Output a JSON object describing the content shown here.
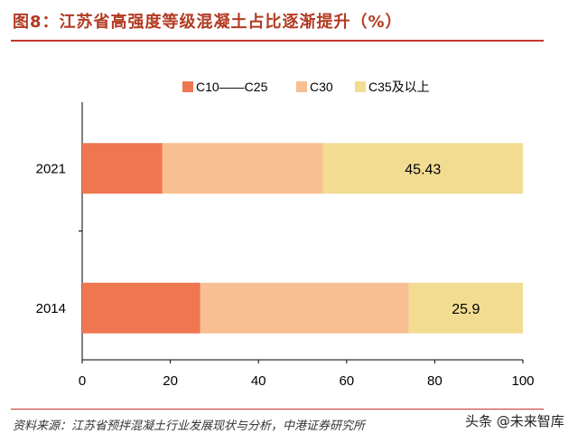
{
  "title": "图8：江苏省高强度等级混凝土占比逐渐提升（%）",
  "source": "资料来源：江苏省预拌混凝土行业发展现状与分析，中港证券研究所",
  "watermark": "头条 @未来智库",
  "colors": {
    "accent": "#c0392b",
    "series": [
      "#ee7650",
      "#f8bf92",
      "#f2dc92"
    ]
  },
  "chart_data": {
    "type": "bar",
    "orientation": "horizontal",
    "stacked": true,
    "categories": [
      "2021",
      "2014"
    ],
    "series": [
      {
        "name": "C10——C25",
        "values": [
          18.2,
          26.8
        ]
      },
      {
        "name": "C30",
        "values": [
          36.4,
          47.3
        ]
      },
      {
        "name": "C35及以上",
        "values": [
          45.43,
          25.9
        ]
      }
    ],
    "data_labels": [
      {
        "series": "C35及以上",
        "category": "2021",
        "text": "45.43"
      },
      {
        "series": "C35及以上",
        "category": "2014",
        "text": "25.9"
      }
    ],
    "xlim": [
      0,
      100
    ],
    "xticks": [
      "0",
      "20",
      "40",
      "60",
      "80",
      "100"
    ],
    "xlabel": "",
    "ylabel": "",
    "grid": false,
    "legend_position": "top"
  }
}
